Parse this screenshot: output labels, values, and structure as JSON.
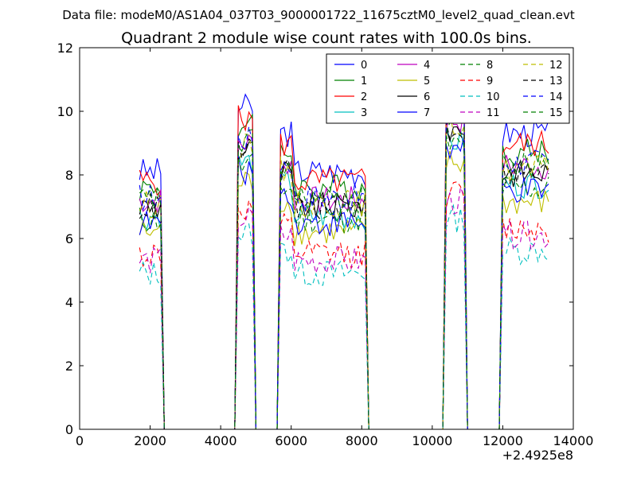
{
  "suptitle": "Data file: modeM0/AS1A04_037T03_9000001722_11675cztM0_level2_quad_clean.evt",
  "chart_data": {
    "type": "line",
    "title": "Quadrant 2 module wise count rates with 100.0s bins.",
    "xlabel": "",
    "ylabel": "",
    "xlim": [
      0,
      14000
    ],
    "ylim": [
      0,
      12
    ],
    "x_offset_label": "+2.4925e8",
    "xticks": [
      "0",
      "2000",
      "4000",
      "6000",
      "8000",
      "10000",
      "12000",
      "14000"
    ],
    "yticks": [
      "0",
      "2",
      "4",
      "6",
      "8",
      "10",
      "12"
    ],
    "legend_position": "upper-right",
    "legend_columns": 4,
    "x": [
      1700,
      1800,
      1900,
      2000,
      2100,
      2200,
      2300,
      2400,
      2500,
      2600,
      2700,
      2800,
      2900,
      3000,
      3100,
      3200,
      3300,
      3400,
      3500,
      3600,
      3700,
      3800,
      3900,
      4000,
      4100,
      4200,
      4300,
      4400,
      4500,
      4600,
      4700,
      4800,
      4900,
      5000,
      5100,
      5200,
      5300,
      5400,
      5500,
      5600,
      5700,
      5800,
      5900,
      6000,
      6100,
      6200,
      6300,
      6400,
      6500,
      6600,
      6700,
      6800,
      6900,
      7000,
      7100,
      7200,
      7300,
      7400,
      7500,
      7600,
      7700,
      7800,
      7900,
      8000,
      8100,
      8200,
      8300,
      8400,
      8500,
      8600,
      8700,
      8800,
      8900,
      9000,
      9100,
      9200,
      9300,
      9400,
      9500,
      9600,
      9700,
      9800,
      9900,
      10000,
      10100,
      10200,
      10300,
      10400,
      10500,
      10600,
      10700,
      10800,
      10900,
      11000,
      11100,
      11200,
      11300,
      11400,
      11500,
      11600,
      11700,
      11800,
      11900,
      12000,
      12100,
      12200,
      12300,
      12400,
      12500,
      12600,
      12700,
      12800,
      12900,
      13000,
      13100,
      13200,
      13300
    ],
    "active_ranges": [
      [
        1700,
        2300
      ],
      [
        4500,
        4900
      ],
      [
        5700,
        8100
      ],
      [
        10400,
        10900
      ],
      [
        12000,
        13300
      ]
    ],
    "series": [
      {
        "name": "0",
        "color": "#0000ff",
        "dash": false,
        "base": 8.1
      },
      {
        "name": "1",
        "color": "#008000",
        "dash": false,
        "base": 7.6
      },
      {
        "name": "2",
        "color": "#ff0000",
        "dash": false,
        "base": 7.8
      },
      {
        "name": "3",
        "color": "#00bfbf",
        "dash": false,
        "base": 6.7
      },
      {
        "name": "4",
        "color": "#bf00bf",
        "dash": false,
        "base": 7.2
      },
      {
        "name": "5",
        "color": "#bfbf00",
        "dash": false,
        "base": 6.2
      },
      {
        "name": "6",
        "color": "#000000",
        "dash": false,
        "base": 7.0
      },
      {
        "name": "7",
        "color": "#0000ff",
        "dash": false,
        "base": 6.5
      },
      {
        "name": "8",
        "color": "#008000",
        "dash": true,
        "base": 6.6
      },
      {
        "name": "9",
        "color": "#ff0000",
        "dash": true,
        "base": 5.5
      },
      {
        "name": "10",
        "color": "#00bfbf",
        "dash": true,
        "base": 4.9
      },
      {
        "name": "11",
        "color": "#bf00bf",
        "dash": true,
        "base": 5.3
      },
      {
        "name": "12",
        "color": "#bfbf00",
        "dash": true,
        "base": 7.1
      },
      {
        "name": "13",
        "color": "#000000",
        "dash": true,
        "base": 7.0
      },
      {
        "name": "14",
        "color": "#0000ff",
        "dash": true,
        "base": 7.3
      },
      {
        "name": "15",
        "color": "#008000",
        "dash": true,
        "base": 7.2
      }
    ]
  }
}
